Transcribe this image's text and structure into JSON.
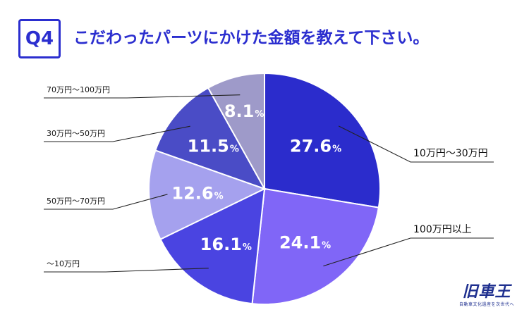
{
  "question": {
    "badge": "Q4",
    "title": "こだわったパーツにかけた金額を教えて下さい。"
  },
  "colors": {
    "accent": "#2b2ecf",
    "logo": "#1e2f8f",
    "leader": "#222222"
  },
  "logo": {
    "mark": "旧車王",
    "tagline": "自動車文化遺産を次世代へ"
  },
  "chart_data": {
    "type": "pie",
    "start_angle_deg": 0,
    "direction": "clockwise",
    "unit": "%",
    "slices": [
      {
        "label": "10万円～30万円",
        "value": 27.6,
        "display": "27.6",
        "color": "#2b2ccc"
      },
      {
        "label": "100万円以上",
        "value": 24.1,
        "display": "24.1",
        "color": "#8066f7"
      },
      {
        "label": "～10万円",
        "value": 16.1,
        "display": "16.1",
        "color": "#4a44e1"
      },
      {
        "label": "50万円～70万円",
        "value": 12.6,
        "display": "12.6",
        "color": "#a5a1ee"
      },
      {
        "label": "30万円～50万円",
        "value": 11.5,
        "display": "11.5",
        "color": "#4a4cc6"
      },
      {
        "label": "70万円～100万円",
        "value": 8.1,
        "display": "8.1",
        "color": "#9e9ac9"
      }
    ]
  }
}
